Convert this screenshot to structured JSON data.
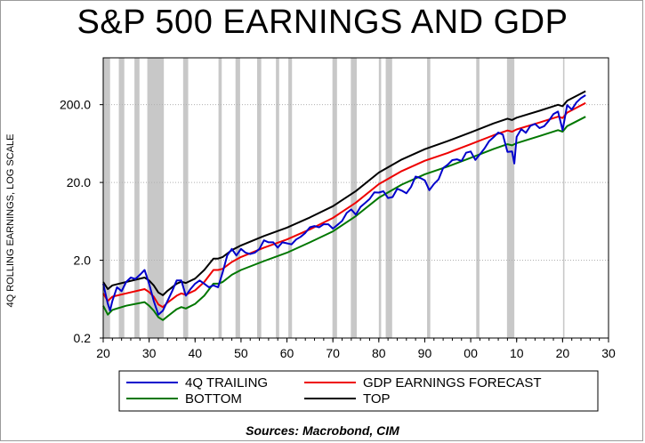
{
  "title": "S&P 500 EARNINGS AND GDP",
  "source": "Sources:  Macrobond, CIM",
  "chart_data": {
    "type": "line",
    "ylabel": "4Q ROLLING EARNINGS, LOG SCALE",
    "yscale": "log",
    "ylim": [
      0.2,
      800
    ],
    "xlim": [
      1920,
      2030
    ],
    "x_tick_labels": [
      "20",
      "30",
      "40",
      "50",
      "60",
      "70",
      "80",
      "90",
      "00",
      "10",
      "20",
      "30"
    ],
    "y_tick_labels": [
      "0.2",
      "2.0",
      "20.0",
      "200.0"
    ],
    "y_tick_values": [
      0.2,
      2.0,
      20.0,
      200.0
    ],
    "grid": "horizontal",
    "legend_position": "bottom",
    "recession_shading": [
      [
        1920.0,
        1921.5
      ],
      [
        1923.4,
        1924.6
      ],
      [
        1926.8,
        1927.9
      ],
      [
        1929.6,
        1933.2
      ],
      [
        1937.4,
        1938.5
      ],
      [
        1945.1,
        1945.8
      ],
      [
        1948.8,
        1949.8
      ],
      [
        1953.5,
        1954.4
      ],
      [
        1957.6,
        1958.3
      ],
      [
        1960.3,
        1961.1
      ],
      [
        1969.9,
        1970.9
      ],
      [
        1973.9,
        1975.2
      ],
      [
        1980.0,
        1980.5
      ],
      [
        1981.5,
        1982.9
      ],
      [
        1990.5,
        1991.2
      ],
      [
        2001.2,
        2001.9
      ],
      [
        2007.9,
        2009.5
      ],
      [
        2020.1,
        2020.4
      ]
    ],
    "series": [
      {
        "name": "4Q TRAILING",
        "color": "#0000cc",
        "x": [
          1920,
          1921,
          1921.5,
          1922,
          1923,
          1924,
          1925,
          1926,
          1927,
          1928,
          1929,
          1930,
          1931,
          1932,
          1933,
          1934,
          1935,
          1936,
          1937,
          1938,
          1939,
          1940,
          1941,
          1942,
          1943,
          1944,
          1945,
          1946,
          1947,
          1948,
          1949,
          1950,
          1951,
          1952,
          1953,
          1954,
          1955,
          1956,
          1957,
          1958,
          1959,
          1960,
          1961,
          1962,
          1963,
          1964,
          1965,
          1966,
          1967,
          1968,
          1969,
          1970,
          1971,
          1972,
          1973,
          1974,
          1975,
          1976,
          1977,
          1978,
          1979,
          1980,
          1981,
          1982,
          1983,
          1984,
          1985,
          1986,
          1987,
          1988,
          1989,
          1990,
          1991,
          1992,
          1993,
          1994,
          1995,
          1996,
          1997,
          1998,
          1999,
          2000,
          2001,
          2002,
          2003,
          2004,
          2005,
          2006,
          2007,
          2008,
          2009,
          2009.5,
          2010,
          2011,
          2012,
          2013,
          2014,
          2015,
          2016,
          2017,
          2018,
          2019,
          2020,
          2021,
          2022,
          2023,
          2024,
          2025
        ],
        "values": [
          1.0,
          0.55,
          0.45,
          0.6,
          0.9,
          0.8,
          1.05,
          1.2,
          1.15,
          1.3,
          1.5,
          1.0,
          0.6,
          0.4,
          0.45,
          0.6,
          0.8,
          1.1,
          1.1,
          0.7,
          0.85,
          1.0,
          1.1,
          1.0,
          0.9,
          0.95,
          0.9,
          1.4,
          2.3,
          2.8,
          2.3,
          2.8,
          2.5,
          2.4,
          2.5,
          2.8,
          3.6,
          3.4,
          3.4,
          2.9,
          3.4,
          3.3,
          3.2,
          3.7,
          4.0,
          4.5,
          5.3,
          5.5,
          5.3,
          5.8,
          5.8,
          5.1,
          5.7,
          6.4,
          8.1,
          9.0,
          7.7,
          9.7,
          10.9,
          12.3,
          14.9,
          14.8,
          15.4,
          12.6,
          13.0,
          16.6,
          15.7,
          14.5,
          17.5,
          23.8,
          22.9,
          21.3,
          15.9,
          19.1,
          21.9,
          30.6,
          33.9,
          38.7,
          39.7,
          37.7,
          48.2,
          50.0,
          38.9,
          46.0,
          54.7,
          67.7,
          76.5,
          87.7,
          82.5,
          49.5,
          50.0,
          35.0,
          77.0,
          97.0,
          87.0,
          107.0,
          113.0,
          100.0,
          106.0,
          124.5,
          151.0,
          162.9,
          94.0,
          197.9,
          172.8,
          213.5,
          243.0,
          265.0
        ]
      },
      {
        "name": "GDP EARNINGS FORECAST",
        "color": "#ee0000",
        "x": [
          1920,
          1921,
          1922,
          1925,
          1929,
          1930,
          1931,
          1932,
          1933,
          1934,
          1936,
          1937,
          1938,
          1940,
          1942,
          1944,
          1945,
          1946,
          1948,
          1950,
          1955,
          1960,
          1965,
          1970,
          1975,
          1980,
          1985,
          1990,
          1995,
          2000,
          2005,
          2008,
          2009,
          2010,
          2015,
          2019,
          2020,
          2021,
          2025
        ],
        "values": [
          0.75,
          0.6,
          0.68,
          0.75,
          0.85,
          0.78,
          0.68,
          0.54,
          0.5,
          0.57,
          0.7,
          0.75,
          0.72,
          0.82,
          1.05,
          1.5,
          1.5,
          1.55,
          1.9,
          2.2,
          2.9,
          3.7,
          5.0,
          7.0,
          11.0,
          19.0,
          28.0,
          38.0,
          48.0,
          62.0,
          81.0,
          93.0,
          90.0,
          96.0,
          118.0,
          140.0,
          135.0,
          158.0,
          210.0
        ]
      },
      {
        "name": "BOTTOM",
        "color": "#007700",
        "x": [
          1920,
          1921,
          1922,
          1925,
          1929,
          1930,
          1931,
          1932,
          1933,
          1934,
          1936,
          1937,
          1938,
          1940,
          1942,
          1944,
          1945,
          1946,
          1948,
          1950,
          1955,
          1960,
          1965,
          1970,
          1975,
          1980,
          1985,
          1990,
          1995,
          2000,
          2005,
          2008,
          2009,
          2010,
          2015,
          2019,
          2020,
          2021,
          2025
        ],
        "values": [
          0.52,
          0.4,
          0.46,
          0.52,
          0.58,
          0.52,
          0.45,
          0.37,
          0.34,
          0.38,
          0.47,
          0.5,
          0.48,
          0.55,
          0.7,
          1.0,
          1.0,
          1.05,
          1.3,
          1.5,
          1.95,
          2.5,
          3.4,
          4.7,
          7.4,
          12.7,
          18.8,
          25.5,
          32.0,
          41.5,
          54.0,
          62.0,
          60.0,
          64.0,
          79.0,
          94.0,
          90.0,
          106.0,
          140.0
        ]
      },
      {
        "name": "TOP",
        "color": "#000000",
        "x": [
          1920,
          1921,
          1922,
          1925,
          1929,
          1930,
          1931,
          1932,
          1933,
          1934,
          1936,
          1937,
          1938,
          1940,
          1942,
          1944,
          1945,
          1946,
          1948,
          1950,
          1955,
          1960,
          1965,
          1970,
          1975,
          1980,
          1985,
          1990,
          1995,
          2000,
          2005,
          2008,
          2009,
          2010,
          2015,
          2019,
          2020,
          2021,
          2025
        ],
        "values": [
          1.05,
          0.85,
          0.95,
          1.05,
          1.2,
          1.1,
          0.95,
          0.77,
          0.71,
          0.81,
          1.0,
          1.06,
          1.02,
          1.16,
          1.5,
          2.1,
          2.1,
          2.2,
          2.7,
          3.1,
          4.1,
          5.25,
          7.1,
          9.9,
          15.5,
          26.8,
          39.5,
          53.5,
          68.0,
          88.0,
          115.0,
          132.0,
          127.0,
          136.0,
          167.0,
          199.0,
          191.0,
          224.0,
          298.0
        ]
      }
    ]
  }
}
